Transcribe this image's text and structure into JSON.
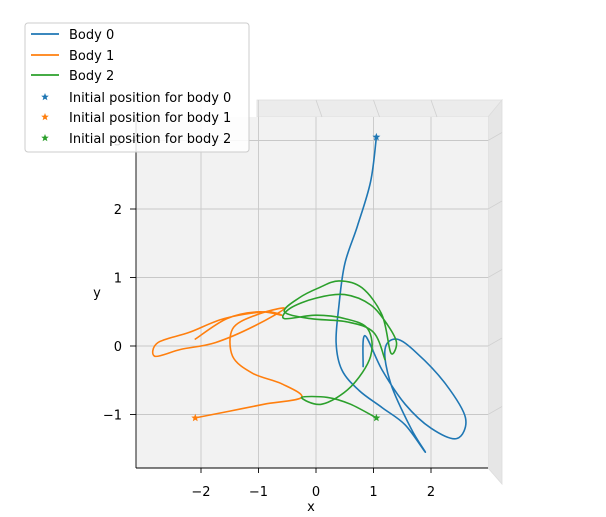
{
  "chart_data": {
    "type": "line",
    "projection": "3d-axes viewed from top (x-y plane)",
    "xlabel": "x",
    "ylabel": "y",
    "xlim": [
      -3.1,
      3.0
    ],
    "ylim": [
      -1.75,
      3.3
    ],
    "xticks": [
      -2,
      -1,
      0,
      1,
      2
    ],
    "yticks": [
      -1,
      0,
      1,
      2,
      3
    ],
    "xtick_labels": [
      "−2",
      "−1",
      "0",
      "1",
      "2"
    ],
    "ytick_labels": [
      "−1",
      "0",
      "1",
      "2",
      "3"
    ],
    "grid": true,
    "legend_position": "top-left",
    "series": [
      {
        "name": "Body 0",
        "color": "#1f77b4",
        "points": [
          [
            1.05,
            3.05
          ],
          [
            0.95,
            2.4
          ],
          [
            0.72,
            1.75
          ],
          [
            0.5,
            1.2
          ],
          [
            0.4,
            0.6
          ],
          [
            0.35,
            0.05
          ],
          [
            0.45,
            -0.35
          ],
          [
            0.75,
            -0.65
          ],
          [
            1.15,
            -0.9
          ],
          [
            1.55,
            -1.15
          ],
          [
            1.9,
            -1.55
          ],
          [
            1.65,
            -1.2
          ],
          [
            1.3,
            -0.55
          ],
          [
            1.2,
            -0.05
          ],
          [
            1.4,
            0.1
          ],
          [
            1.75,
            -0.1
          ],
          [
            2.25,
            -0.55
          ],
          [
            2.6,
            -1.05
          ],
          [
            2.45,
            -1.35
          ],
          [
            2.0,
            -1.2
          ],
          [
            1.55,
            -0.85
          ],
          [
            1.15,
            -0.35
          ],
          [
            0.85,
            0.15
          ],
          [
            0.82,
            -0.3
          ]
        ]
      },
      {
        "name": "Body 1",
        "color": "#ff7f0e",
        "points": [
          [
            -2.1,
            -1.05
          ],
          [
            -1.5,
            -0.95
          ],
          [
            -0.9,
            -0.85
          ],
          [
            -0.25,
            -0.75
          ],
          [
            -0.6,
            -0.55
          ],
          [
            -1.1,
            -0.4
          ],
          [
            -1.45,
            -0.15
          ],
          [
            -1.45,
            0.25
          ],
          [
            -1.05,
            0.45
          ],
          [
            -0.55,
            0.55
          ],
          [
            -1.05,
            0.3
          ],
          [
            -1.75,
            0.05
          ],
          [
            -2.35,
            -0.05
          ],
          [
            -2.8,
            -0.15
          ],
          [
            -2.75,
            0.05
          ],
          [
            -2.2,
            0.2
          ],
          [
            -1.6,
            0.4
          ],
          [
            -0.9,
            0.5
          ],
          [
            -0.6,
            0.45
          ],
          [
            -1.0,
            0.5
          ],
          [
            -1.55,
            0.4
          ],
          [
            -2.1,
            0.1
          ]
        ]
      },
      {
        "name": "Body 2",
        "color": "#2ca02c",
        "points": [
          [
            1.05,
            -1.05
          ],
          [
            0.6,
            -0.85
          ],
          [
            0.2,
            -0.75
          ],
          [
            -0.25,
            -0.75
          ],
          [
            0.1,
            -0.85
          ],
          [
            0.6,
            -0.6
          ],
          [
            0.95,
            -0.15
          ],
          [
            0.9,
            0.25
          ],
          [
            0.5,
            0.4
          ],
          [
            0.0,
            0.45
          ],
          [
            -0.55,
            0.4
          ],
          [
            -0.45,
            0.55
          ],
          [
            0.0,
            0.7
          ],
          [
            0.5,
            0.75
          ],
          [
            0.95,
            0.6
          ],
          [
            1.25,
            0.3
          ],
          [
            1.4,
            0.05
          ],
          [
            1.3,
            -0.1
          ],
          [
            1.15,
            0.45
          ],
          [
            0.8,
            0.85
          ],
          [
            0.4,
            0.95
          ],
          [
            0.05,
            0.85
          ],
          [
            -0.3,
            0.7
          ],
          [
            -0.55,
            0.5
          ],
          [
            -0.1,
            0.4
          ],
          [
            0.55,
            0.35
          ],
          [
            1.0,
            0.2
          ],
          [
            1.2,
            -0.2
          ]
        ]
      }
    ],
    "initial_positions": [
      {
        "name": "Initial position for body 0",
        "color": "#1f77b4",
        "x": 1.05,
        "y": 3.05
      },
      {
        "name": "Initial position for body 1",
        "color": "#ff7f0e",
        "x": -2.1,
        "y": -1.05
      },
      {
        "name": "Initial position for body 2",
        "color": "#2ca02c",
        "x": 1.05,
        "y": -1.05
      }
    ]
  }
}
